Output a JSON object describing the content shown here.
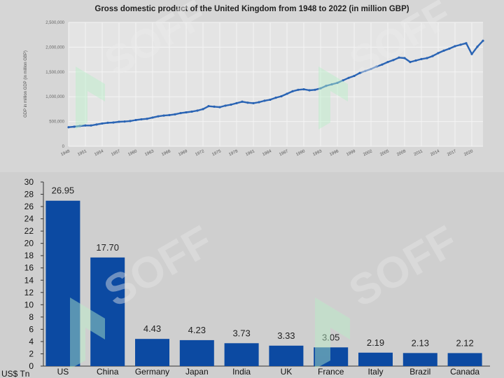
{
  "watermark_text": "SOFF",
  "chart_data": [
    {
      "type": "line",
      "title": "Gross domestic product of the United Kingdom from 1948 to 2022 (in million GBP)",
      "ylabel": "GDP in million GDP (in million GBP)",
      "ylim": [
        0,
        2500000
      ],
      "yticks": [
        0,
        500000,
        1000000,
        1500000,
        2000000,
        2500000
      ],
      "ytick_labels": [
        "0",
        "500,000",
        "1,000,000",
        "1,500,000",
        "2,000,000",
        "2,500,000"
      ],
      "xlim": [
        1948,
        2022
      ],
      "xtick_labels": [
        "1948",
        "1951",
        "1954",
        "1957",
        "1960",
        "1963",
        "1966",
        "1969",
        "1972",
        "1975",
        "1978",
        "1981",
        "1984",
        "1987",
        "1990",
        "1993",
        "1996",
        "1999",
        "2002",
        "2005",
        "2008",
        "2011",
        "2014",
        "2017",
        "2020"
      ],
      "grid": true,
      "color": "#2a64b4",
      "series": [
        {
          "x": [
            1948,
            1949,
            1950,
            1951,
            1952,
            1953,
            1954,
            1955,
            1956,
            1957,
            1958,
            1959,
            1960,
            1961,
            1962,
            1963,
            1964,
            1965,
            1966,
            1967,
            1968,
            1969,
            1970,
            1971,
            1972,
            1973,
            1974,
            1975,
            1976,
            1977,
            1978,
            1979,
            1980,
            1981,
            1982,
            1983,
            1984,
            1985,
            1986,
            1987,
            1988,
            1989,
            1990,
            1991,
            1992,
            1993,
            1994,
            1995,
            1996,
            1997,
            1998,
            1999,
            2000,
            2001,
            2002,
            2003,
            2004,
            2005,
            2006,
            2007,
            2008,
            2009,
            2010,
            2011,
            2012,
            2013,
            2014,
            2015,
            2016,
            2017,
            2018,
            2019,
            2020,
            2021,
            2022
          ],
          "values": [
            385000,
            395000,
            410000,
            420000,
            420000,
            440000,
            460000,
            475000,
            480000,
            495000,
            500000,
            510000,
            530000,
            545000,
            555000,
            580000,
            605000,
            620000,
            630000,
            645000,
            670000,
            685000,
            700000,
            720000,
            750000,
            810000,
            800000,
            790000,
            820000,
            840000,
            870000,
            900000,
            880000,
            870000,
            890000,
            920000,
            940000,
            980000,
            1010000,
            1060000,
            1110000,
            1140000,
            1150000,
            1130000,
            1140000,
            1170000,
            1220000,
            1250000,
            1280000,
            1330000,
            1380000,
            1420000,
            1480000,
            1520000,
            1560000,
            1610000,
            1650000,
            1700000,
            1740000,
            1790000,
            1780000,
            1700000,
            1730000,
            1760000,
            1780000,
            1820000,
            1880000,
            1930000,
            1970000,
            2020000,
            2050000,
            2080000,
            1860000,
            2010000,
            2130000
          ]
        }
      ]
    },
    {
      "type": "bar",
      "ylabel": "US$ Tn",
      "ylim": [
        0,
        30
      ],
      "yticks": [
        0,
        2,
        4,
        6,
        8,
        10,
        12,
        14,
        16,
        18,
        20,
        22,
        24,
        26,
        28,
        30
      ],
      "categories": [
        "US",
        "China",
        "Germany",
        "Japan",
        "India",
        "UK",
        "France",
        "Italy",
        "Brazil",
        "Canada"
      ],
      "values": [
        26.95,
        17.7,
        4.43,
        4.23,
        3.73,
        3.33,
        3.05,
        2.19,
        2.13,
        2.12
      ],
      "value_labels": [
        "26.95",
        "17.70",
        "4.43",
        "4.23",
        "3.73",
        "3.33",
        "3.05",
        "2.19",
        "2.13",
        "2.12"
      ],
      "color": "#0c4aa2",
      "grid": false
    }
  ]
}
